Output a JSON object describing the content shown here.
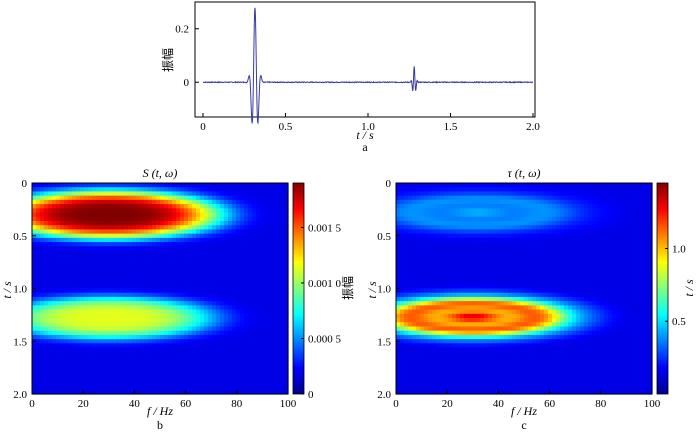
{
  "chart_data": [
    {
      "id": "a",
      "type": "line",
      "panel_label": "a",
      "xlabel": "t / s",
      "ylabel": "振幅",
      "xlim": [
        0,
        2.0
      ],
      "ylim": [
        -0.13,
        0.3
      ],
      "xticks": [
        0,
        0.5,
        1.0,
        1.5,
        2.0
      ],
      "xtick_labels": [
        "0",
        "0.5",
        "1.0",
        "1.5",
        "2.0"
      ],
      "yticks": [
        0,
        0.2
      ],
      "ytick_labels": [
        "0",
        "0.2"
      ],
      "line_color": "#3a3aa0",
      "pulses": [
        {
          "center": 0.315,
          "amplitude": 0.28,
          "period": 0.035
        },
        {
          "center": 1.28,
          "amplitude": 0.06,
          "period": 0.018
        }
      ]
    },
    {
      "id": "b",
      "type": "heatmap",
      "panel_label": "b",
      "title": "S (t, ω)",
      "xlabel": "f / Hz",
      "ylabel": "t / s",
      "xlim": [
        0,
        100
      ],
      "ylim": [
        0,
        2.0
      ],
      "xticks": [
        0,
        20,
        40,
        60,
        80,
        100
      ],
      "xtick_labels": [
        "0",
        "20",
        "40",
        "60",
        "80",
        "100"
      ],
      "yticks": [
        0,
        0.5,
        1.0,
        1.5,
        2.0
      ],
      "ytick_labels": [
        "0",
        "0.5",
        "1.0",
        "1.5",
        "2.0"
      ],
      "colorbar_label": "振幅",
      "colorbar_ticks": [
        0,
        0.0005,
        0.001,
        0.0015
      ],
      "colorbar_tick_labels": [
        "0",
        "0.000 5",
        "0.001 0",
        "0.001 5"
      ],
      "colorbar_max": 0.0019,
      "blobs": [
        {
          "t_center": 0.3,
          "f_center": 30,
          "t_halfwidth": 0.22,
          "f_halfwidth": 42,
          "peak": 0.0019
        },
        {
          "t_center": 1.28,
          "f_center": 30,
          "t_halfwidth": 0.2,
          "f_halfwidth": 40,
          "peak": 0.00105
        }
      ]
    },
    {
      "id": "c",
      "type": "heatmap",
      "panel_label": "c",
      "title": "τ (t, ω)",
      "xlabel": "f / Hz",
      "ylabel": "t / s",
      "xlim": [
        0,
        100
      ],
      "ylim": [
        0,
        2.0
      ],
      "xticks": [
        0,
        20,
        40,
        60,
        80,
        100
      ],
      "xtick_labels": [
        "0",
        "20",
        "40",
        "60",
        "80",
        "100"
      ],
      "yticks": [
        0,
        0.5,
        1.0,
        1.5,
        2.0
      ],
      "ytick_labels": [
        "0",
        "0.5",
        "1.0",
        "1.5",
        "2.0"
      ],
      "colorbar_label": "t / s",
      "colorbar_ticks": [
        0.5,
        1.0
      ],
      "colorbar_tick_labels": [
        "0.5",
        "1.0"
      ],
      "colorbar_max": 1.45,
      "blobs": [
        {
          "t_center": 0.28,
          "f_center": 32,
          "t_halfwidth": 0.2,
          "f_halfwidth": 42,
          "peak": 0.32
        },
        {
          "t_center": 1.27,
          "f_center": 30,
          "t_halfwidth": 0.2,
          "f_halfwidth": 40,
          "peak": 1.3
        }
      ]
    }
  ]
}
